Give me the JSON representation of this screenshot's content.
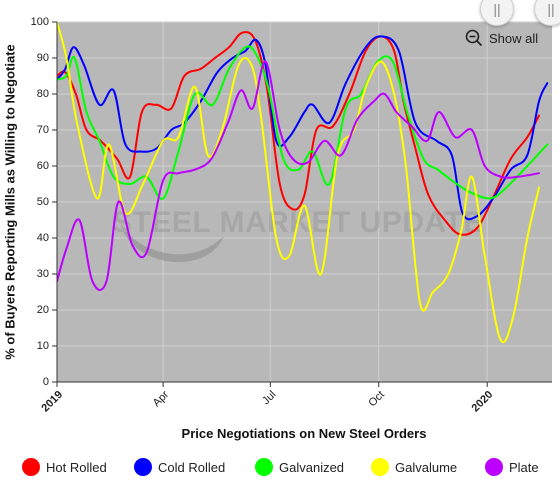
{
  "chart_data": {
    "type": "line",
    "title": "",
    "xlabel": "Price Negotiations on New Steel Orders",
    "ylabel": "% of Buyers Reporting Mills as Willing to Negotiate",
    "ylim": [
      0,
      100
    ],
    "xlim": [
      "2019-01-01",
      "2020-02-25"
    ],
    "yticks": [
      0,
      10,
      20,
      30,
      40,
      50,
      60,
      70,
      80,
      90,
      100
    ],
    "xticks": [
      {
        "date": "2019-01-01",
        "label": "2019",
        "bold": true
      },
      {
        "date": "2019-04-01",
        "label": "Apr",
        "bold": false
      },
      {
        "date": "2019-07-01",
        "label": "Jul",
        "bold": false
      },
      {
        "date": "2019-10-01",
        "label": "Oct",
        "bold": false
      },
      {
        "date": "2020-01-01",
        "label": "2020",
        "bold": true
      }
    ],
    "grid": true,
    "legend_position": "bottom",
    "watermark": "STEEL MARKET UPDATE",
    "series": [
      {
        "name": "Hot Rolled",
        "color": "#ff0000",
        "points": [
          [
            "2019-01-01",
            85
          ],
          [
            "2019-01-08",
            86
          ],
          [
            "2019-01-17",
            80
          ],
          [
            "2019-01-26",
            70
          ],
          [
            "2019-02-07",
            67
          ],
          [
            "2019-02-21",
            62
          ],
          [
            "2019-03-04",
            57
          ],
          [
            "2019-03-14",
            75
          ],
          [
            "2019-03-26",
            77
          ],
          [
            "2019-04-08",
            76
          ],
          [
            "2019-04-19",
            85
          ],
          [
            "2019-05-03",
            87
          ],
          [
            "2019-05-15",
            90
          ],
          [
            "2019-05-27",
            93
          ],
          [
            "2019-06-07",
            97
          ],
          [
            "2019-06-18",
            95
          ],
          [
            "2019-06-28",
            82
          ],
          [
            "2019-07-09",
            55
          ],
          [
            "2019-07-20",
            48
          ],
          [
            "2019-07-30",
            52
          ],
          [
            "2019-08-09",
            70
          ],
          [
            "2019-08-23",
            71
          ],
          [
            "2019-09-06",
            80
          ],
          [
            "2019-09-20",
            92
          ],
          [
            "2019-10-03",
            96
          ],
          [
            "2019-10-14",
            92
          ],
          [
            "2019-10-22",
            78
          ],
          [
            "2019-11-01",
            65
          ],
          [
            "2019-11-12",
            52
          ],
          [
            "2019-11-26",
            45
          ],
          [
            "2019-12-09",
            41
          ],
          [
            "2019-12-24",
            43
          ],
          [
            "2020-01-07",
            52
          ],
          [
            "2020-01-21",
            62
          ],
          [
            "2020-02-04",
            68
          ],
          [
            "2020-02-14",
            74
          ]
        ]
      },
      {
        "name": "Cold Rolled",
        "color": "#0000ff",
        "points": [
          [
            "2019-01-01",
            84
          ],
          [
            "2019-01-08",
            87
          ],
          [
            "2019-01-15",
            93
          ],
          [
            "2019-01-24",
            88
          ],
          [
            "2019-02-06",
            77
          ],
          [
            "2019-02-18",
            81
          ],
          [
            "2019-02-28",
            66
          ],
          [
            "2019-03-14",
            64
          ],
          [
            "2019-03-27",
            65
          ],
          [
            "2019-04-08",
            70
          ],
          [
            "2019-04-19",
            72
          ],
          [
            "2019-05-03",
            78
          ],
          [
            "2019-05-17",
            86
          ],
          [
            "2019-05-30",
            90
          ],
          [
            "2019-06-10",
            92
          ],
          [
            "2019-06-19",
            95
          ],
          [
            "2019-06-27",
            88
          ],
          [
            "2019-07-06",
            67
          ],
          [
            "2019-07-17",
            68
          ],
          [
            "2019-07-30",
            75
          ],
          [
            "2019-08-06",
            77
          ],
          [
            "2019-08-20",
            72
          ],
          [
            "2019-09-03",
            83
          ],
          [
            "2019-09-20",
            93
          ],
          [
            "2019-10-03",
            96
          ],
          [
            "2019-10-18",
            92
          ],
          [
            "2019-11-01",
            72
          ],
          [
            "2019-11-19",
            67
          ],
          [
            "2019-12-02",
            63
          ],
          [
            "2019-12-11",
            47
          ],
          [
            "2019-12-23",
            46
          ],
          [
            "2020-01-06",
            51
          ],
          [
            "2020-01-21",
            59
          ],
          [
            "2020-02-04",
            63
          ],
          [
            "2020-02-14",
            78
          ],
          [
            "2020-02-21",
            83
          ]
        ]
      },
      {
        "name": "Galvanized",
        "color": "#00ff00",
        "points": [
          [
            "2019-01-01",
            84
          ],
          [
            "2019-01-09",
            85
          ],
          [
            "2019-01-16",
            90
          ],
          [
            "2019-01-26",
            75
          ],
          [
            "2019-02-06",
            67
          ],
          [
            "2019-02-18",
            57
          ],
          [
            "2019-03-04",
            55
          ],
          [
            "2019-03-18",
            57
          ],
          [
            "2019-04-01",
            51
          ],
          [
            "2019-04-14",
            64
          ],
          [
            "2019-04-28",
            80
          ],
          [
            "2019-05-13",
            77
          ],
          [
            "2019-05-27",
            87
          ],
          [
            "2019-06-10",
            93
          ],
          [
            "2019-06-19",
            91
          ],
          [
            "2019-06-29",
            82
          ],
          [
            "2019-07-12",
            62
          ],
          [
            "2019-07-25",
            59
          ],
          [
            "2019-08-06",
            64
          ],
          [
            "2019-08-20",
            55
          ],
          [
            "2019-09-03",
            76
          ],
          [
            "2019-09-16",
            80
          ],
          [
            "2019-09-30",
            89
          ],
          [
            "2019-10-13",
            89
          ],
          [
            "2019-10-25",
            75
          ],
          [
            "2019-11-08",
            62
          ],
          [
            "2019-11-20",
            59
          ],
          [
            "2019-12-02",
            56
          ],
          [
            "2019-12-16",
            53
          ],
          [
            "2020-01-02",
            51
          ],
          [
            "2020-01-14",
            53
          ],
          [
            "2020-02-04",
            60
          ],
          [
            "2020-02-21",
            66
          ]
        ]
      },
      {
        "name": "Galvalume",
        "color": "#ffff00",
        "points": [
          [
            "2019-01-01",
            100
          ],
          [
            "2019-01-09",
            90
          ],
          [
            "2019-01-18",
            72
          ],
          [
            "2019-02-04",
            51
          ],
          [
            "2019-02-14",
            66
          ],
          [
            "2019-02-28",
            47
          ],
          [
            "2019-03-15",
            55
          ],
          [
            "2019-04-01",
            67
          ],
          [
            "2019-04-14",
            68
          ],
          [
            "2019-04-28",
            82
          ],
          [
            "2019-05-09",
            63
          ],
          [
            "2019-05-21",
            70
          ],
          [
            "2019-06-04",
            88
          ],
          [
            "2019-06-15",
            88
          ],
          [
            "2019-06-23",
            74
          ],
          [
            "2019-07-06",
            40
          ],
          [
            "2019-07-17",
            35
          ],
          [
            "2019-07-30",
            49
          ],
          [
            "2019-08-13",
            30
          ],
          [
            "2019-08-27",
            63
          ],
          [
            "2019-09-10",
            70
          ],
          [
            "2019-09-20",
            82
          ],
          [
            "2019-10-03",
            89
          ],
          [
            "2019-10-14",
            80
          ],
          [
            "2019-10-24",
            60
          ],
          [
            "2019-11-05",
            22
          ],
          [
            "2019-11-16",
            25
          ],
          [
            "2019-11-29",
            30
          ],
          [
            "2019-12-10",
            42
          ],
          [
            "2019-12-19",
            57
          ],
          [
            "2019-12-30",
            35
          ],
          [
            "2020-01-12",
            12
          ],
          [
            "2020-01-23",
            18
          ],
          [
            "2020-02-04",
            40
          ],
          [
            "2020-02-14",
            54
          ]
        ]
      },
      {
        "name": "Plate",
        "color": "#bb00ff",
        "points": [
          [
            "2019-01-01",
            28
          ],
          [
            "2019-01-09",
            37
          ],
          [
            "2019-01-20",
            45
          ],
          [
            "2019-01-31",
            28
          ],
          [
            "2019-02-12",
            28
          ],
          [
            "2019-02-22",
            50
          ],
          [
            "2019-03-06",
            38
          ],
          [
            "2019-03-18",
            36
          ],
          [
            "2019-04-01",
            56
          ],
          [
            "2019-04-14",
            58
          ],
          [
            "2019-04-28",
            59
          ],
          [
            "2019-05-12",
            62
          ],
          [
            "2019-05-26",
            72
          ],
          [
            "2019-06-06",
            81
          ],
          [
            "2019-06-16",
            76
          ],
          [
            "2019-06-27",
            89
          ],
          [
            "2019-07-09",
            70
          ],
          [
            "2019-07-20",
            62
          ],
          [
            "2019-08-02",
            61
          ],
          [
            "2019-08-16",
            67
          ],
          [
            "2019-08-30",
            63
          ],
          [
            "2019-09-13",
            73
          ],
          [
            "2019-09-27",
            78
          ],
          [
            "2019-10-06",
            80
          ],
          [
            "2019-10-16",
            75
          ],
          [
            "2019-10-29",
            71
          ],
          [
            "2019-11-11",
            67
          ],
          [
            "2019-11-21",
            75
          ],
          [
            "2019-12-05",
            68
          ],
          [
            "2019-12-19",
            70
          ],
          [
            "2019-12-30",
            60
          ],
          [
            "2020-01-13",
            57
          ],
          [
            "2020-01-27",
            57
          ],
          [
            "2020-02-14",
            58
          ]
        ]
      }
    ]
  },
  "controls": {
    "show_all_label": "Show all",
    "zoom_handle_glyph": "||"
  }
}
